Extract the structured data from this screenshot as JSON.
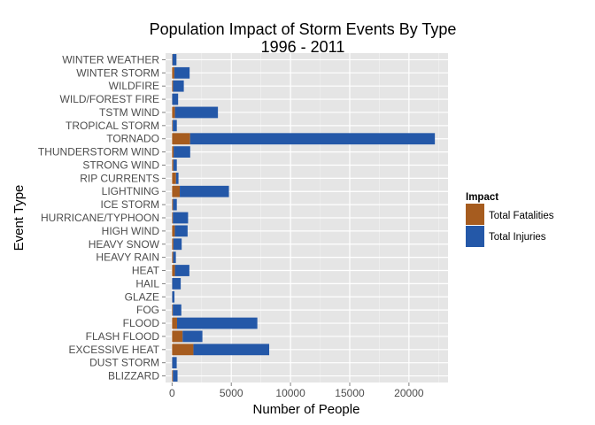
{
  "chart_data": {
    "type": "bar",
    "orientation": "horizontal",
    "stacked": true,
    "title": "Population Impact of Storm Events By Type",
    "subtitle": "1996 - 2011",
    "xlabel": "Number of People",
    "ylabel": "Event Type",
    "xlim": [
      -550,
      23300
    ],
    "xticks": [
      0,
      5000,
      10000,
      15000,
      20000
    ],
    "xtick_labels": [
      "0",
      "5000",
      "10000",
      "15000",
      "20000"
    ],
    "grid": true,
    "legend_position": "right",
    "legend_title": "Impact",
    "categories": [
      "BLIZZARD",
      "DUST STORM",
      "EXCESSIVE HEAT",
      "FLASH FLOOD",
      "FLOOD",
      "FOG",
      "GLAZE",
      "HAIL",
      "HEAT",
      "HEAVY RAIN",
      "HEAVY SNOW",
      "HIGH WIND",
      "HURRICANE/TYPHOON",
      "ICE STORM",
      "LIGHTNING",
      "RIP CURRENTS",
      "STRONG WIND",
      "THUNDERSTORM WIND",
      "TORNADO",
      "TROPICAL STORM",
      "TSTM WIND",
      "WILD/FOREST FIRE",
      "WILDFIRE",
      "WINTER STORM",
      "WINTER WEATHER"
    ],
    "series": [
      {
        "name": "Total Fatalities",
        "color": "#a65c1f",
        "values": [
          70,
          10,
          1800,
          890,
          420,
          60,
          10,
          10,
          240,
          90,
          110,
          230,
          70,
          80,
          650,
          330,
          110,
          130,
          1520,
          60,
          240,
          10,
          80,
          190,
          30
        ]
      },
      {
        "name": "Total Injuries",
        "color": "#2458a8",
        "values": [
          390,
          380,
          6400,
          1670,
          6780,
          720,
          190,
          720,
          1220,
          230,
          700,
          1080,
          1280,
          320,
          4150,
          210,
          290,
          1400,
          20670,
          340,
          3630,
          500,
          910,
          1290,
          340
        ]
      }
    ]
  }
}
